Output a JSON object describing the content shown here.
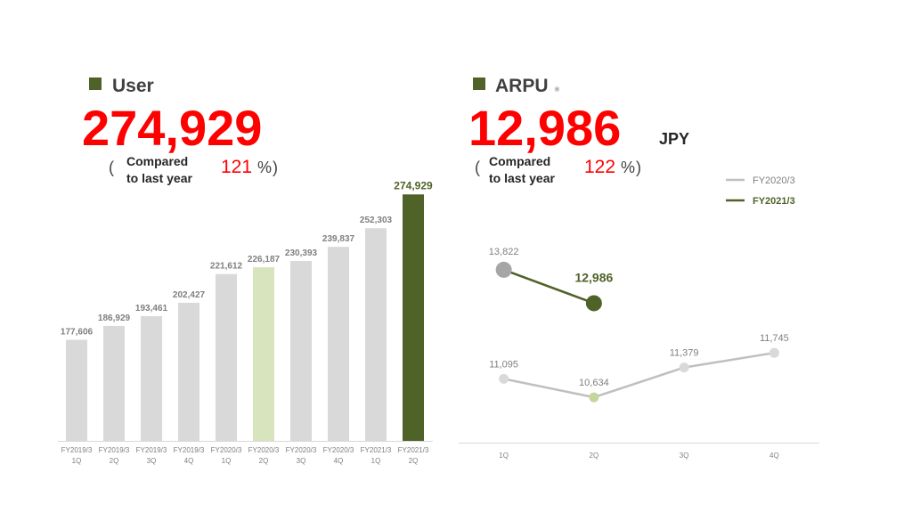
{
  "chart_data": [
    {
      "type": "bar",
      "title": "User",
      "headline_value": "274,929",
      "comparison": {
        "open": "(",
        "label": [
          "Compared",
          "to last year"
        ],
        "value": 121,
        "unit": "%",
        "close": ")"
      },
      "categories": [
        [
          "FY2019/3",
          "1Q"
        ],
        [
          "FY2019/3",
          "2Q"
        ],
        [
          "FY2019/3",
          "3Q"
        ],
        [
          "FY2019/3",
          "4Q"
        ],
        [
          "FY2020/3",
          "1Q"
        ],
        [
          "FY2020/3",
          "2Q"
        ],
        [
          "FY2020/3",
          "3Q"
        ],
        [
          "FY2020/3",
          "4Q"
        ],
        [
          "FY2021/3",
          "1Q"
        ],
        [
          "FY2021/3",
          "2Q"
        ]
      ],
      "values": [
        177606,
        186929,
        193461,
        202427,
        221612,
        226187,
        230393,
        239837,
        252303,
        274929
      ],
      "value_labels": [
        "177,606",
        "186,929",
        "193,461",
        "202,427",
        "221,612",
        "226,187",
        "230,393",
        "239,837",
        "252,303",
        "274,929"
      ],
      "colors": [
        "#d9d9d9",
        "#d9d9d9",
        "#d9d9d9",
        "#d9d9d9",
        "#d9d9d9",
        "#d7e4bd",
        "#d9d9d9",
        "#d9d9d9",
        "#d9d9d9",
        "#4f6228"
      ],
      "ylim": [
        110000,
        290000
      ]
    },
    {
      "type": "line",
      "title": "ARPU",
      "title_note": "※",
      "headline_value": "12,986",
      "headline_unit": "JPY",
      "comparison": {
        "open": "(",
        "label": [
          "Compared",
          "to last year"
        ],
        "value": 122,
        "unit": "%",
        "close": ")"
      },
      "categories": [
        "1Q",
        "2Q",
        "3Q",
        "4Q"
      ],
      "series": [
        {
          "name": "FY2020/3",
          "color": "#bfbfbf",
          "marker_colors": [
            "#d9d9d9",
            "#c3d69b",
            "#d9d9d9",
            "#d9d9d9"
          ],
          "values": [
            11095,
            10634,
            11379,
            11745
          ],
          "value_labels": [
            "11,095",
            "10,634",
            "11,379",
            "11,745"
          ]
        },
        {
          "name": "FY2021/3",
          "color": "#4f6228",
          "marker_colors": [
            "#a6a6a6",
            "#4f6228",
            null,
            null
          ],
          "values": [
            13822,
            12986,
            null,
            null
          ],
          "value_labels": [
            "13,822",
            "12,986",
            null,
            null
          ]
        }
      ],
      "ylim": [
        9500,
        15000
      ],
      "legend": "top-right"
    }
  ]
}
